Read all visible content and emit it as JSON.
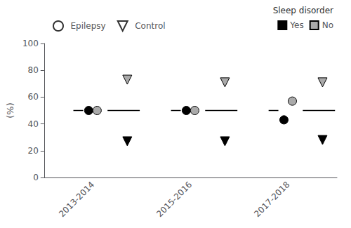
{
  "chart_data": {
    "type": "scatter",
    "ylabel": "(%)",
    "categories": [
      "2013-2014",
      "2015-2016",
      "2017-2018"
    ],
    "groups": [
      {
        "name": "Epilepsy",
        "marker": "circle",
        "series": [
          {
            "name": "Yes",
            "color": "#000000",
            "values": [
              50,
              50,
              43
            ]
          },
          {
            "name": "No",
            "color": "#aaaaaa",
            "values": [
              50,
              50,
              57
            ]
          }
        ]
      },
      {
        "name": "Control",
        "marker": "triangle-down",
        "series": [
          {
            "name": "Yes",
            "color": "#000000",
            "values": [
              27,
              27,
              28
            ]
          },
          {
            "name": "No",
            "color": "#aaaaaa",
            "values": [
              73,
              71,
              71
            ]
          }
        ]
      }
    ],
    "legend_title": "Sleep disorder",
    "hline": 50,
    "ylim": [
      0,
      100
    ],
    "yticks": [
      0,
      20,
      40,
      60,
      80,
      100
    ],
    "grid": false,
    "legend": "top"
  }
}
